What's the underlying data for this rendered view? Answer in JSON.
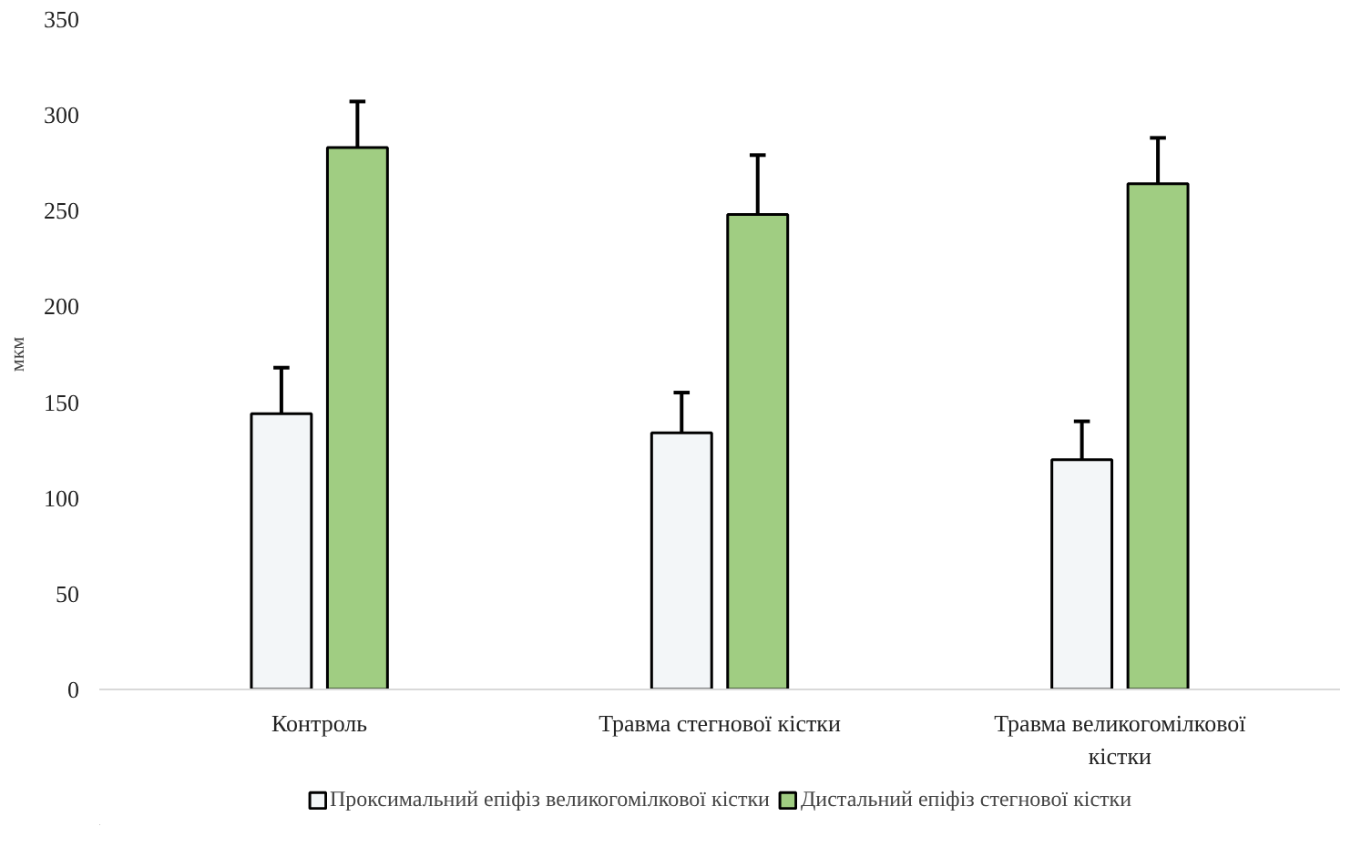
{
  "chart_data": {
    "type": "bar",
    "ylabel": "мкм",
    "categories": [
      "Контроль",
      "Травма стегнової кістки",
      "Травма великогомілкової кістки"
    ],
    "series": [
      {
        "name": "Проксимальний епіфіз великогомілкової кістки",
        "color": "#f3f6f8",
        "values": [
          144,
          134,
          120
        ],
        "errors": [
          [
            144,
            168
          ],
          [
            134,
            155
          ],
          [
            120,
            140
          ]
        ]
      },
      {
        "name": "Дистальний епіфіз стегнової кістки",
        "color": "#a0cd82",
        "values": [
          283,
          248,
          264
        ],
        "errors": [
          [
            283,
            307
          ],
          [
            248,
            279
          ],
          [
            264,
            288
          ]
        ]
      }
    ],
    "ylim": [
      0,
      350
    ],
    "yticks": [
      0,
      50,
      100,
      150,
      200,
      250,
      300,
      350
    ],
    "grid": false,
    "legend": "bottom"
  }
}
